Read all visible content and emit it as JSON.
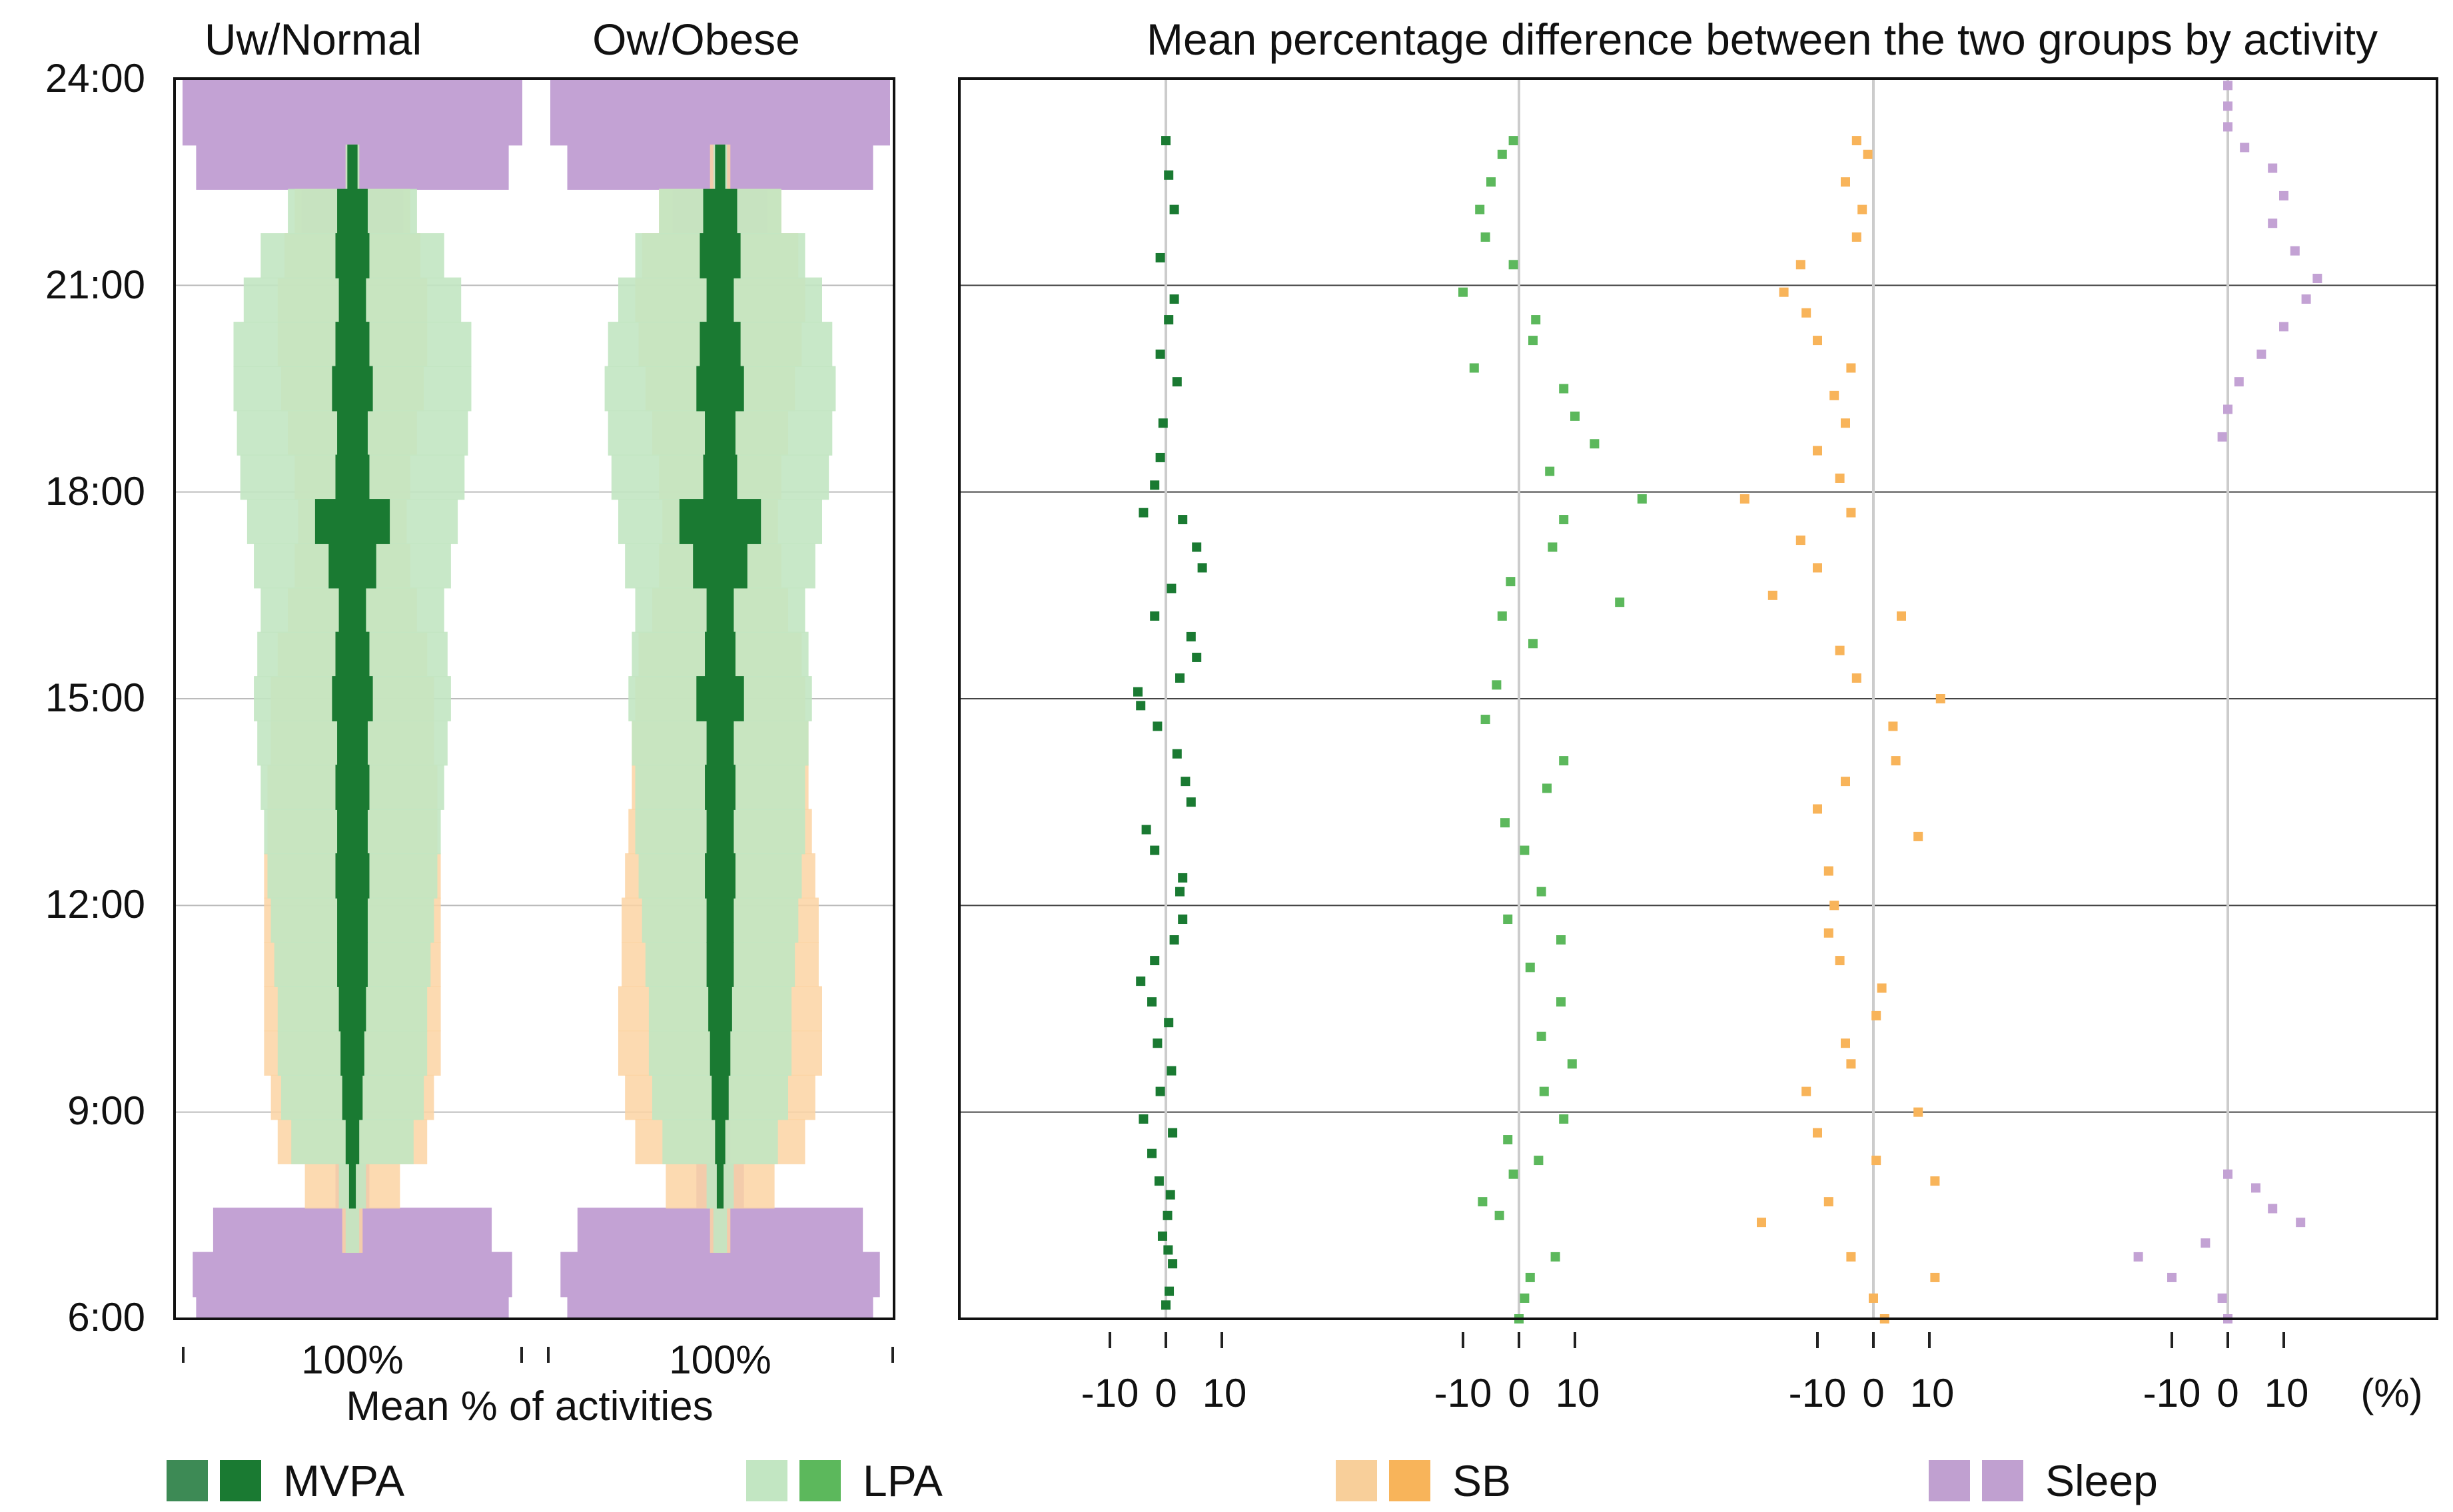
{
  "chart_data": [
    {
      "type": "bar",
      "title": "Uw/Normal",
      "xlabel": "Mean % of activities",
      "xtick": "100%",
      "ylabel": "",
      "y_ticks": [
        "24:00",
        "21:00",
        "18:00",
        "15:00",
        "12:00",
        "9:00",
        "6:00"
      ],
      "ylim_hours": [
        6,
        24
      ],
      "series": [
        {
          "name": "Sleep",
          "width_pct": [
            92,
            94,
            82,
            10,
            4,
            3,
            3,
            3,
            3,
            2,
            2,
            2,
            2,
            2,
            2,
            2,
            2,
            2,
            2,
            2,
            2,
            2,
            2,
            4,
            8,
            30,
            92,
            100,
            100
          ]
        },
        {
          "name": "SB",
          "width_pct": [
            0,
            0,
            6,
            28,
            44,
            48,
            52,
            52,
            52,
            52,
            52,
            50,
            50,
            48,
            48,
            44,
            38,
            34,
            32,
            34,
            38,
            42,
            44,
            44,
            40,
            34,
            4,
            0,
            0
          ]
        },
        {
          "name": "LPA",
          "width_pct": [
            0,
            0,
            4,
            8,
            36,
            42,
            44,
            44,
            46,
            48,
            50,
            52,
            54,
            56,
            58,
            56,
            54,
            58,
            62,
            66,
            68,
            70,
            70,
            64,
            54,
            38,
            4,
            0,
            0
          ]
        },
        {
          "name": "MVPA",
          "width_pct": [
            0,
            0,
            0,
            2,
            4,
            6,
            7,
            8,
            9,
            9,
            10,
            9,
            10,
            9,
            12,
            10,
            8,
            14,
            22,
            10,
            9,
            12,
            10,
            8,
            10,
            9,
            3,
            0,
            0
          ]
        }
      ]
    },
    {
      "type": "bar",
      "title": "Ow/Obese",
      "xtick": "100%",
      "ylim_hours": [
        6,
        24
      ],
      "series": [
        {
          "name": "Sleep",
          "width_pct": [
            90,
            94,
            84,
            14,
            6,
            4,
            4,
            4,
            4,
            3,
            3,
            3,
            3,
            3,
            3,
            3,
            3,
            3,
            3,
            3,
            3,
            3,
            3,
            4,
            8,
            28,
            90,
            100,
            100
          ]
        },
        {
          "name": "SB",
          "width_pct": [
            0,
            0,
            6,
            32,
            50,
            56,
            60,
            60,
            58,
            58,
            56,
            54,
            52,
            52,
            50,
            48,
            40,
            36,
            34,
            36,
            40,
            44,
            48,
            50,
            46,
            36,
            6,
            0,
            0
          ]
        },
        {
          "name": "LPA",
          "width_pct": [
            0,
            0,
            4,
            8,
            34,
            40,
            42,
            42,
            44,
            46,
            48,
            50,
            50,
            52,
            54,
            52,
            50,
            56,
            60,
            64,
            66,
            68,
            66,
            60,
            50,
            36,
            4,
            0,
            0
          ]
        },
        {
          "name": "MVPA",
          "width_pct": [
            0,
            0,
            0,
            2,
            3,
            5,
            6,
            7,
            8,
            8,
            9,
            8,
            9,
            8,
            14,
            9,
            8,
            16,
            24,
            10,
            9,
            14,
            12,
            8,
            12,
            10,
            3,
            0,
            0
          ]
        }
      ]
    },
    {
      "type": "scatter",
      "title": "Mean percentage difference between the two groups by activity",
      "x_unit": "(%)",
      "x_ticks": [
        "-10",
        "0",
        "10"
      ],
      "xlim_per_panel": [
        -12,
        12
      ],
      "series": [
        {
          "name": "MVPA",
          "points": [
            [
              0,
              6.2
            ],
            [
              0.6,
              6.4
            ],
            [
              1.2,
              6.8
            ],
            [
              0.4,
              7.0
            ],
            [
              -0.6,
              7.2
            ],
            [
              0.3,
              7.5
            ],
            [
              0.8,
              7.8
            ],
            [
              -1.2,
              8.0
            ],
            [
              -2.5,
              8.4
            ],
            [
              1.2,
              8.7
            ],
            [
              -4.0,
              8.9
            ],
            [
              -1.0,
              9.3
            ],
            [
              1.0,
              9.6
            ],
            [
              -1.5,
              10.0
            ],
            [
              0.5,
              10.3
            ],
            [
              -2.5,
              10.6
            ],
            [
              -4.5,
              10.9
            ],
            [
              -2.0,
              11.2
            ],
            [
              1.5,
              11.5
            ],
            [
              3.0,
              11.8
            ],
            [
              2.5,
              12.2
            ],
            [
              3.0,
              12.4
            ],
            [
              -2.0,
              12.8
            ],
            [
              -3.5,
              13.1
            ],
            [
              4.5,
              13.5
            ],
            [
              3.5,
              13.8
            ],
            [
              2.0,
              14.2
            ],
            [
              -1.5,
              14.6
            ],
            [
              -4.5,
              14.9
            ],
            [
              -5.0,
              15.1
            ],
            [
              2.5,
              15.3
            ],
            [
              5.5,
              15.6
            ],
            [
              4.5,
              15.9
            ],
            [
              -2.0,
              16.2
            ],
            [
              1.0,
              16.6
            ],
            [
              6.5,
              16.9
            ],
            [
              5.5,
              17.2
            ],
            [
              3.0,
              17.6
            ],
            [
              -4.0,
              17.7
            ],
            [
              -2.0,
              18.1
            ],
            [
              -1.0,
              18.5
            ],
            [
              -0.5,
              19.0
            ],
            [
              2.0,
              19.6
            ],
            [
              -1.0,
              20.0
            ],
            [
              0.5,
              20.5
            ],
            [
              1.5,
              20.8
            ],
            [
              -1.0,
              21.4
            ],
            [
              1.5,
              22.1
            ],
            [
              0.5,
              22.6
            ],
            [
              0,
              23.1
            ]
          ]
        },
        {
          "name": "LPA",
          "points": [
            [
              0,
              6.0
            ],
            [
              1.0,
              6.3
            ],
            [
              2.0,
              6.6
            ],
            [
              6.5,
              6.9
            ],
            [
              -3.5,
              7.5
            ],
            [
              -6.5,
              7.7
            ],
            [
              -1.0,
              8.1
            ],
            [
              3.5,
              8.3
            ],
            [
              -2.0,
              8.6
            ],
            [
              8.0,
              8.9
            ],
            [
              4.5,
              9.3
            ],
            [
              9.5,
              9.7
            ],
            [
              4.0,
              10.1
            ],
            [
              7.5,
              10.6
            ],
            [
              2.0,
              11.1
            ],
            [
              7.5,
              11.5
            ],
            [
              -2.0,
              11.8
            ],
            [
              4.0,
              12.2
            ],
            [
              1.0,
              12.8
            ],
            [
              -2.5,
              13.2
            ],
            [
              5.0,
              13.7
            ],
            [
              8.0,
              14.1
            ],
            [
              -6.0,
              14.7
            ],
            [
              -4.0,
              15.2
            ],
            [
              2.5,
              15.8
            ],
            [
              -3.0,
              16.2
            ],
            [
              18.0,
              16.4
            ],
            [
              -1.5,
              16.7
            ],
            [
              6.0,
              17.2
            ],
            [
              8.0,
              17.6
            ],
            [
              22.0,
              17.9
            ],
            [
              5.5,
              18.3
            ],
            [
              13.5,
              18.7
            ],
            [
              10.0,
              19.1
            ],
            [
              8.0,
              19.5
            ],
            [
              -8.0,
              19.8
            ],
            [
              2.5,
              20.2
            ],
            [
              3.0,
              20.5
            ],
            [
              -10.0,
              20.9
            ],
            [
              -1.0,
              21.3
            ],
            [
              -6.0,
              21.7
            ],
            [
              -7.0,
              22.1
            ],
            [
              -5.0,
              22.5
            ],
            [
              -3.0,
              22.9
            ],
            [
              -1.0,
              23.1
            ]
          ]
        },
        {
          "name": "SB",
          "points": [
            [
              2.0,
              6.0
            ],
            [
              0,
              6.3
            ],
            [
              11.0,
              6.6
            ],
            [
              -4.0,
              6.9
            ],
            [
              -20.0,
              7.4
            ],
            [
              -8.0,
              7.7
            ],
            [
              11.0,
              8.0
            ],
            [
              0.5,
              8.3
            ],
            [
              -10.0,
              8.7
            ],
            [
              8.0,
              9.0
            ],
            [
              -12.0,
              9.3
            ],
            [
              -4.0,
              9.7
            ],
            [
              -5.0,
              10.0
            ],
            [
              0.5,
              10.4
            ],
            [
              1.5,
              10.8
            ],
            [
              -6.0,
              11.2
            ],
            [
              -8.0,
              11.6
            ],
            [
              -7.0,
              12.0
            ],
            [
              -8.0,
              12.5
            ],
            [
              8.0,
              13.0
            ],
            [
              -10.0,
              13.4
            ],
            [
              -5.0,
              13.8
            ],
            [
              4.0,
              14.1
            ],
            [
              3.5,
              14.6
            ],
            [
              12.0,
              15.0
            ],
            [
              -3.0,
              15.3
            ],
            [
              -6.0,
              15.7
            ],
            [
              5.0,
              16.2
            ],
            [
              -18.0,
              16.5
            ],
            [
              -10.0,
              16.9
            ],
            [
              -13.0,
              17.3
            ],
            [
              -4.0,
              17.7
            ],
            [
              -23.0,
              17.9
            ],
            [
              -6.0,
              18.2
            ],
            [
              -10.0,
              18.6
            ],
            [
              -5.0,
              19.0
            ],
            [
              -7.0,
              19.4
            ],
            [
              -4.0,
              19.8
            ],
            [
              -10.0,
              20.2
            ],
            [
              -12.0,
              20.6
            ],
            [
              -16.0,
              20.9
            ],
            [
              -13.0,
              21.3
            ],
            [
              -3.0,
              21.7
            ],
            [
              -2.0,
              22.1
            ],
            [
              -5.0,
              22.5
            ],
            [
              -1.0,
              22.9
            ],
            [
              -3.0,
              23.1
            ]
          ]
        },
        {
          "name": "Sleep",
          "points": [
            [
              0,
              6.0
            ],
            [
              -1.0,
              6.3
            ],
            [
              -10.0,
              6.6
            ],
            [
              -16.0,
              6.9
            ],
            [
              -4.0,
              7.1
            ],
            [
              13.0,
              7.4
            ],
            [
              8.0,
              7.6
            ],
            [
              5.0,
              7.9
            ],
            [
              0,
              8.1
            ],
            [
              -1.0,
              18.8
            ],
            [
              0,
              19.2
            ],
            [
              2.0,
              19.6
            ],
            [
              6.0,
              20.0
            ],
            [
              10.0,
              20.4
            ],
            [
              14.0,
              20.8
            ],
            [
              16.0,
              21.1
            ],
            [
              12.0,
              21.5
            ],
            [
              8.0,
              21.9
            ],
            [
              10.0,
              22.3
            ],
            [
              8.0,
              22.7
            ],
            [
              3.0,
              23.0
            ],
            [
              0,
              23.3
            ],
            [
              0,
              23.6
            ],
            [
              0,
              23.9
            ]
          ]
        }
      ]
    }
  ],
  "left_panel": {
    "title_uw": "Uw/Normal",
    "title_ow": "Ow/Obese",
    "tick_uw": "100%",
    "tick_ow": "100%",
    "xlabel": "Mean % of activities",
    "y_ticks": [
      "24:00",
      "21:00",
      "18:00",
      "15:00",
      "12:00",
      "9:00",
      "6:00"
    ]
  },
  "right_panel": {
    "title": "Mean percentage difference between the two groups by activity",
    "tick_neg": "-10",
    "tick_zero": "0",
    "tick_pos": "10",
    "unit": "(%)"
  },
  "legend": [
    {
      "label": "MVPA",
      "light": "#3d8a55",
      "dark": "#1a7a32"
    },
    {
      "label": "LPA",
      "light": "#c2e6c2",
      "dark": "#5cb85c"
    },
    {
      "label": "SB",
      "light": "#f8cf9a",
      "dark": "#f8b45a"
    },
    {
      "label": "Sleep",
      "light": "#c0a0d0",
      "dark": "#c0a0d0"
    }
  ],
  "colors": {
    "mvpa": "#1a7a32",
    "lpa": "#5cb85c",
    "lpa_fill": "#c2e6c2",
    "sb": "#f8b45a",
    "sb_fill": "#fbd3a3",
    "sleep": "#c3a2d4",
    "grid": "#555555",
    "zero": "#cccccc"
  }
}
